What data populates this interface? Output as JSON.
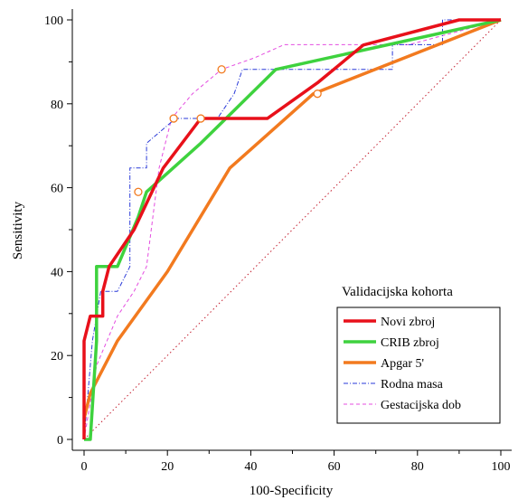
{
  "chart_data": {
    "type": "line",
    "xlabel": "100-Specificity",
    "ylabel": "Sensitivity",
    "xlim": [
      0,
      100
    ],
    "ylim": [
      0,
      100
    ],
    "xticks": [
      0,
      20,
      40,
      60,
      80,
      100
    ],
    "yticks": [
      0,
      20,
      40,
      60,
      80,
      100
    ],
    "grid": false,
    "legend_title": "Validacijska kohorta",
    "legend_position": "bottom-right",
    "series": [
      {
        "name": "Novi zbroj",
        "color": "#e8101a",
        "style": "solid",
        "x": [
          0,
          0,
          1.5,
          1.5,
          4.5,
          4.5,
          6,
          12,
          19,
          28,
          44,
          56,
          67,
          90,
          100
        ],
        "y": [
          0,
          23.5,
          29.4,
          29.4,
          29.4,
          35.3,
          41.2,
          50,
          64.7,
          76.5,
          76.5,
          85,
          94,
          100,
          100
        ]
      },
      {
        "name": "CRIB zbroj",
        "color": "#3ed23e",
        "style": "solid",
        "x": [
          0,
          1.5,
          3,
          3,
          6.5,
          8,
          13,
          15,
          28,
          46,
          100
        ],
        "y": [
          0,
          0,
          23.5,
          41.2,
          41.2,
          41.2,
          53,
          59,
          70.6,
          88.2,
          100
        ]
      },
      {
        "name": "Apgar 5'",
        "color": "#f27a1f",
        "style": "solid",
        "x": [
          0,
          1.5,
          8,
          20,
          35,
          55,
          100
        ],
        "y": [
          5,
          11,
          23.5,
          40,
          64.7,
          82.4,
          100
        ]
      },
      {
        "name": "Rodna masa",
        "color": "#2a3ad8",
        "style": "dash-dot",
        "x": [
          0,
          2,
          4,
          8,
          11,
          11,
          15,
          15,
          22,
          25,
          30,
          32,
          36,
          38,
          50,
          74,
          74,
          86,
          86,
          100
        ],
        "y": [
          0,
          23.5,
          35.3,
          35.3,
          41.2,
          64.7,
          64.7,
          70.6,
          76.5,
          76.5,
          76.5,
          76.5,
          82.4,
          88.2,
          88.2,
          88.2,
          94.1,
          94.1,
          100,
          100
        ]
      },
      {
        "name": "Gestacijska dob",
        "color": "#e44de0",
        "style": "dashed",
        "x": [
          0,
          3,
          8,
          12,
          15,
          18,
          21,
          26,
          33,
          41,
          48,
          65,
          78,
          100
        ],
        "y": [
          0,
          17.6,
          29.4,
          35.3,
          41.2,
          64.7,
          76.5,
          82.4,
          88.2,
          91,
          94.1,
          94.1,
          94.1,
          100
        ]
      },
      {
        "name": "",
        "color": "#c42030",
        "style": "dotted",
        "x": [
          0,
          100
        ],
        "y": [
          0,
          100
        ]
      }
    ],
    "markers": [
      {
        "x": 13,
        "y": 59
      },
      {
        "x": 21.5,
        "y": 76.5
      },
      {
        "x": 28,
        "y": 76.5
      },
      {
        "x": 33,
        "y": 88.2
      },
      {
        "x": 56,
        "y": 82.4
      }
    ],
    "marker_color": "#f27a1f"
  }
}
